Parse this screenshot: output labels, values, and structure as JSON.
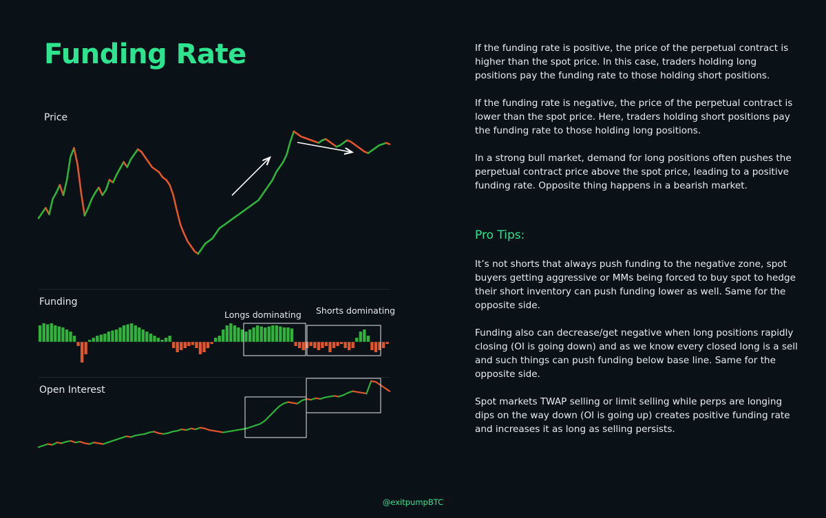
{
  "header": {
    "title": "Funding Rate"
  },
  "panels": {
    "price_label": "Price",
    "funding_label": "Funding",
    "oi_label": "Open Interest",
    "longs_annotation": "Longs dominating",
    "shorts_annotation": "Shorts dominating"
  },
  "colors": {
    "accent": "#2ee58f",
    "up": "#2fb33a",
    "down": "#e2562b",
    "background": "#0b1217"
  },
  "text": {
    "paragraphs": [
      "If the funding rate is positive, the price of the perpetual contract is higher than the spot price. In this case, traders holding long positions pay the funding rate to those holding short positions.",
      "If the funding rate is negative, the price of the perpetual contract is lower than the spot price. Here, traders holding short positions pay the funding rate to those holding long positions.",
      "In a strong bull market, demand for long positions often pushes the perpetual contract price above the spot price, leading to a positive funding rate. Opposite thing happens in a bearish market."
    ],
    "pro_tips_title": "Pro Tips:",
    "pro_tips": [
      "It’s not shorts that always push funding to the negative zone, spot buyers getting aggressive or MMs being forced to buy spot to hedge their short inventory can push funding lower as well. Same for the opposite side.",
      "Funding also can decrease/get negative when long positions rapidly closing (OI is going down) and as we know every closed long is a sell and such things can push funding below base line. Same for the opposite side.",
      "Spot markets TWAP selling or limit selling while perps are longing dips on the way down (OI is going up) creates positive funding rate and increases it as long as selling persists."
    ]
  },
  "footer": {
    "handle": "@exitpumpBTC"
  },
  "chart_data": [
    {
      "type": "line",
      "series": [
        {
          "values": [
            40,
            44,
            48,
            43,
            55,
            60,
            66,
            58,
            70,
            88,
            95,
            82,
            60,
            42,
            48,
            55,
            60,
            64,
            58,
            62,
            70,
            68,
            74,
            79,
            84,
            80,
            86,
            90,
            94,
            92,
            88,
            84,
            80,
            78,
            76,
            72,
            70,
            66,
            58,
            46,
            35,
            28,
            22,
            18,
            14,
            12,
            16,
            20,
            22,
            24,
            28,
            32,
            34,
            36,
            38,
            40,
            42,
            44,
            46,
            48,
            50,
            52,
            54,
            58,
            62,
            66,
            70,
            76,
            80,
            84,
            90,
            100,
            108,
            106,
            104,
            103,
            102,
            101,
            100,
            99,
            101,
            102,
            100,
            98,
            96,
            97,
            99,
            101,
            100,
            98,
            96,
            94,
            92,
            91,
            93,
            95,
            97,
            98,
            99,
            98
          ]
        }
      ]
    },
    {
      "type": "bar",
      "series": [
        {
          "values": [
            0.8,
            0.9,
            0.85,
            0.9,
            0.8,
            0.75,
            0.7,
            0.6,
            0.5,
            0.3,
            -0.2,
            -1,
            -0.6,
            0.1,
            0.2,
            0.3,
            0.35,
            0.4,
            0.5,
            0.55,
            0.6,
            0.7,
            0.8,
            0.85,
            0.9,
            0.8,
            0.7,
            0.6,
            0.5,
            0.4,
            0.3,
            0.2,
            0.1,
            0.2,
            0.3,
            -0.3,
            -0.5,
            -0.4,
            -0.3,
            -0.2,
            -0.15,
            -0.3,
            -0.6,
            -0.5,
            -0.3,
            -0.1,
            0.2,
            0.3,
            0.6,
            0.8,
            0.9,
            0.8,
            0.7,
            0.6,
            0.5,
            0.6,
            0.7,
            0.8,
            0.75,
            0.7,
            0.75,
            0.8,
            0.8,
            0.75,
            0.7,
            0.7,
            0.65,
            -0.2,
            -0.3,
            -0.4,
            -0.3,
            -0.2,
            -0.3,
            -0.4,
            -0.3,
            -0.2,
            -0.5,
            -0.3,
            -0.2,
            -0.1,
            -0.3,
            -0.4,
            -0.3,
            0.2,
            0.5,
            0.6,
            0.3,
            -0.4,
            -0.5,
            -0.4,
            -0.3,
            -0.1
          ]
        }
      ]
    },
    {
      "type": "line",
      "series": [
        {
          "values": [
            10,
            12,
            14,
            13,
            16,
            15,
            17,
            18,
            16,
            17,
            15,
            14,
            16,
            15,
            14,
            16,
            18,
            20,
            22,
            24,
            23,
            25,
            26,
            27,
            29,
            30,
            28,
            27,
            28,
            30,
            31,
            33,
            32,
            34,
            33,
            35,
            34,
            32,
            31,
            30,
            29,
            30,
            31,
            32,
            33,
            34,
            36,
            38,
            40,
            44,
            50,
            56,
            62,
            66,
            68,
            67,
            66,
            70,
            72,
            71,
            73,
            72,
            74,
            75,
            76,
            75,
            77,
            80,
            82,
            81,
            80,
            79,
            95,
            94,
            90,
            86,
            82
          ]
        }
      ]
    }
  ]
}
